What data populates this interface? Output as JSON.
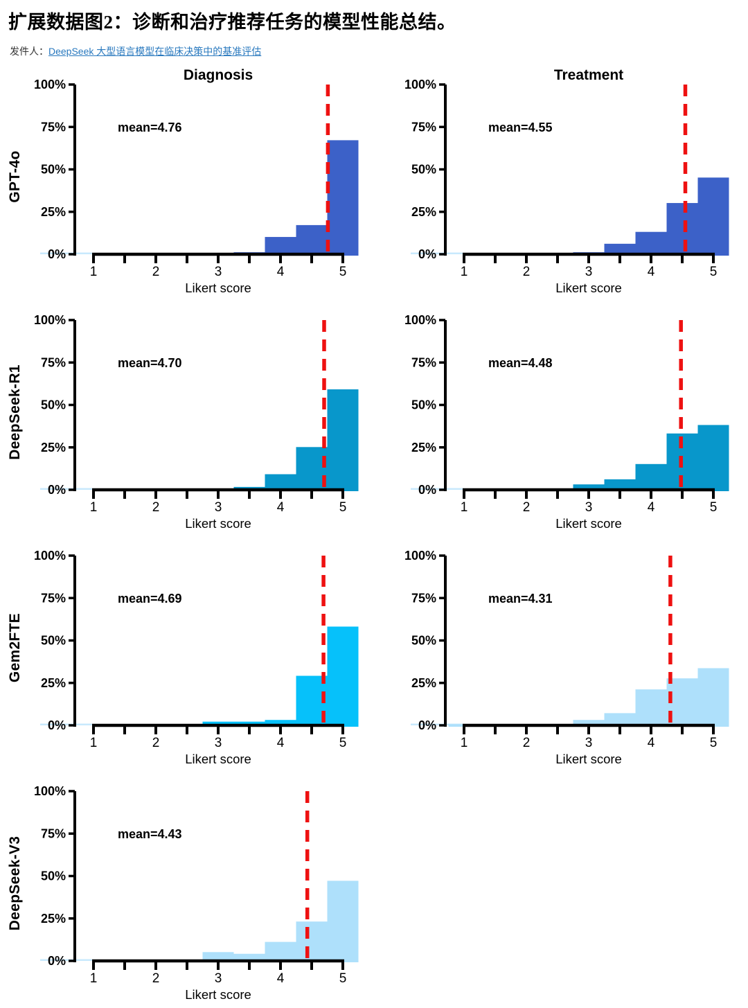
{
  "page": {
    "title": "扩展数据图2：诊断和治疗推荐任务的模型性能总结。",
    "from_label": "发件人：",
    "source_link": "DeepSeek 大型语言模型在临床决策中的基准评估"
  },
  "colors": {
    "link": "#2878BE",
    "axis": "#000000",
    "mean_line": "#EE1111",
    "baseline_artifact": "#C8E9FD"
  },
  "chart_data": {
    "type": "bar",
    "subtype": "histogram",
    "layout": "4 model rows × 2 task columns (last row has Diagnosis only)",
    "columns": [
      "Diagnosis",
      "Treatment"
    ],
    "xlabel": "Likert score",
    "x_ticks": [
      1,
      2,
      3,
      4,
      5
    ],
    "x_minor_step": 0.5,
    "xlim": [
      0.75,
      5.25
    ],
    "y_tick_labels": [
      "0%",
      "25%",
      "50%",
      "75%",
      "100%"
    ],
    "ylim": [
      0,
      100
    ],
    "bin_centers": [
      1,
      1.5,
      2,
      2.5,
      3,
      3.5,
      4,
      4.5,
      5
    ],
    "bin_width": 0.5,
    "mean_line_style": "dashed",
    "rows": [
      {
        "model": "GPT-4o",
        "charts": [
          {
            "column": "Diagnosis",
            "mean": 4.76,
            "mean_label": "mean=4.76",
            "bar_color": "#3C61C8",
            "values_pct": [
              0,
              0,
              0,
              0,
              1,
              2,
              11,
              18,
              68
            ]
          },
          {
            "column": "Treatment",
            "mean": 4.55,
            "mean_label": "mean=4.55",
            "bar_color": "#3C61C8",
            "values_pct": [
              0,
              0,
              0,
              0,
              2,
              7,
              14,
              31,
              46
            ]
          }
        ]
      },
      {
        "model": "DeepSeek-R1",
        "charts": [
          {
            "column": "Diagnosis",
            "mean": 4.7,
            "mean_label": "mean=4.70",
            "bar_color": "#0897CB",
            "values_pct": [
              0,
              0,
              0,
              0,
              1.5,
              2.5,
              10,
              26,
              60
            ]
          },
          {
            "column": "Treatment",
            "mean": 4.48,
            "mean_label": "mean=4.48",
            "bar_color": "#0897CB",
            "values_pct": [
              0,
              0,
              0,
              0,
              4,
              7,
              16,
              34,
              39
            ]
          }
        ]
      },
      {
        "model": "Gem2FTE",
        "charts": [
          {
            "column": "Diagnosis",
            "mean": 4.69,
            "mean_label": "mean=4.69",
            "bar_color": "#06C1FA",
            "values_pct": [
              0,
              0,
              0,
              1,
              3,
              3,
              4,
              30,
              59
            ]
          },
          {
            "column": "Treatment",
            "mean": 4.31,
            "mean_label": "mean=4.31",
            "bar_color": "#AEE0FB",
            "values_pct": [
              1.5,
              0.5,
              0.5,
              0.5,
              4,
              8,
              22,
              28.5,
              34.5
            ]
          }
        ]
      },
      {
        "model": "DeepSeek-V3",
        "charts": [
          {
            "column": "Diagnosis",
            "mean": 4.43,
            "mean_label": "mean=4.43",
            "bar_color": "#AEE0FB",
            "values_pct": [
              0,
              1.5,
              0.5,
              1.5,
              6,
              5,
              12,
              24,
              48
            ]
          }
        ]
      }
    ]
  }
}
